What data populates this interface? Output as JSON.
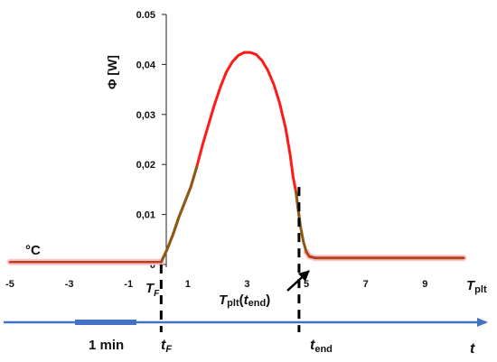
{
  "chart_data": {
    "type": "line",
    "ylabel": "Φ [W]",
    "unit_label": "°C",
    "xlim": [
      -5,
      10.3
    ],
    "ylim": [
      0,
      0.05
    ],
    "x_ticks": [
      -5,
      -3,
      -1,
      1,
      3,
      5,
      7,
      9
    ],
    "x_tick_labels": [
      "-5",
      "-3",
      "-1",
      "1",
      "3",
      "5",
      "7",
      "9"
    ],
    "y_ticks": [
      0,
      0.01,
      0.02,
      0.03,
      0.04,
      0.05
    ],
    "y_tick_labels": [
      "0",
      "0,01",
      "0,02",
      "0,03",
      "0,04",
      "0.05"
    ],
    "x_axis_label": {
      "main": "T",
      "sub": "plt"
    },
    "TF_label": {
      "main": "T",
      "sub": "F"
    },
    "tend_annotation": {
      "main": "T",
      "sub": "plt",
      "paren_open": "(",
      "inner_main": "t",
      "inner_sub": "end",
      "paren_close": ")"
    },
    "time_axis": {
      "label": "t",
      "tF_label": {
        "main": "t",
        "sub": "F"
      },
      "tend_label": {
        "main": "t",
        "sub": "end"
      },
      "scale_bar_label": "1 min"
    },
    "markers": {
      "TF_x": 0.1,
      "tend_x": 4.75
    },
    "colors": {
      "curve": "#ff1a1a",
      "baseline": "#b5421d",
      "transition": "#8b5a14",
      "time_axis": "#4472c4",
      "dashed": "#000000"
    },
    "series": [
      {
        "x": [
          -5,
          -4,
          -3,
          -2,
          -1,
          0,
          0.1,
          0.3,
          0.5,
          0.7,
          0.9,
          1.1,
          1.3,
          1.5,
          1.7,
          1.9,
          2.1,
          2.3,
          2.5,
          2.7,
          2.9,
          3.1,
          3.3,
          3.5,
          3.7,
          3.9,
          4.1,
          4.3,
          4.45,
          4.55,
          4.65,
          4.7,
          4.75,
          4.8,
          4.9,
          5.0,
          5.1,
          5.3,
          6,
          7,
          8,
          9,
          10,
          10.3
        ],
        "y": [
          0.0005,
          0.0005,
          0.0005,
          0.0005,
          0.0005,
          0.0005,
          0.0005,
          0.003,
          0.006,
          0.0095,
          0.0125,
          0.0155,
          0.0195,
          0.024,
          0.028,
          0.032,
          0.0355,
          0.0385,
          0.0405,
          0.0418,
          0.0424,
          0.0424,
          0.042,
          0.0408,
          0.0388,
          0.036,
          0.0322,
          0.0272,
          0.022,
          0.0175,
          0.0145,
          0.012,
          0.0098,
          0.0076,
          0.0045,
          0.0025,
          0.0016,
          0.0013,
          0.0013,
          0.0013,
          0.0013,
          0.0013,
          0.0013,
          0.0013
        ]
      }
    ]
  }
}
